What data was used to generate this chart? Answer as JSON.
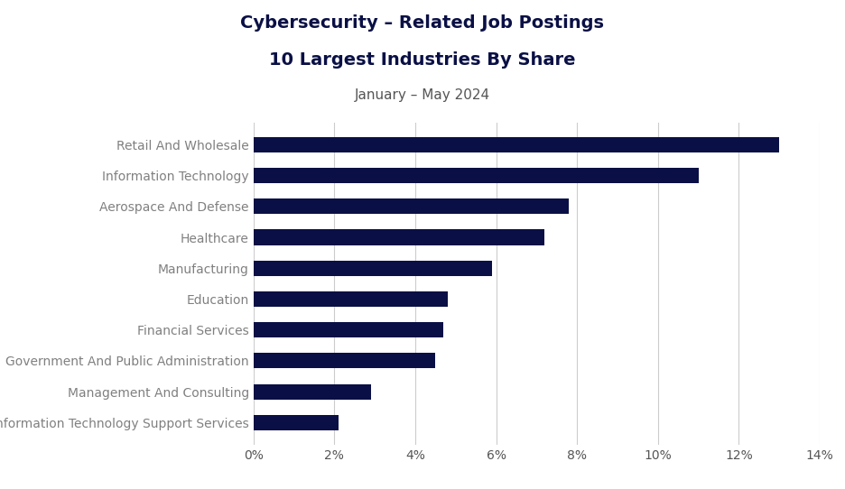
{
  "title_line1": "Cybersecurity – Related Job Postings",
  "title_line2": "10 Largest Industries By Share",
  "subtitle": "January – May 2024",
  "categories": [
    "Information Technology Support Services",
    "Management And Consulting",
    "Government And Public Administration",
    "Financial Services",
    "Education",
    "Manufacturing",
    "Healthcare",
    "Aerospace And Defense",
    "Information Technology",
    "Retail And Wholesale"
  ],
  "values": [
    2.1,
    2.9,
    4.5,
    4.7,
    4.8,
    5.9,
    7.2,
    7.8,
    11.0,
    13.0
  ],
  "bar_color": "#0a1045",
  "label_color": "#808080",
  "title_color": "#0a1045",
  "subtitle_color": "#555555",
  "bg_color": "#ffffff",
  "xlim": [
    0,
    14
  ],
  "xticks": [
    0,
    2,
    4,
    6,
    8,
    10,
    12,
    14
  ],
  "grid_color": "#cccccc",
  "bar_height": 0.5,
  "title_fontsize": 14,
  "subtitle_fontsize": 11,
  "label_fontsize": 10,
  "xtick_fontsize": 10
}
